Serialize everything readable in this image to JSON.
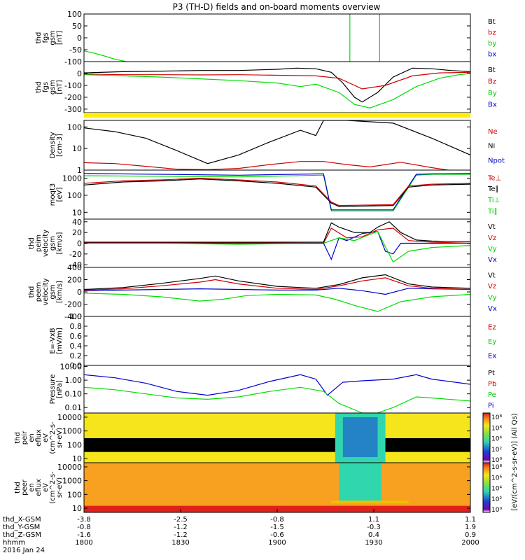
{
  "title": "P3 (TH-D) fields and on-board moments overview",
  "chart_data": [
    {
      "type": "line",
      "ylabel": [
        "thd",
        "fgs",
        "gsm",
        "[nT]"
      ],
      "ylim": [
        -100,
        100
      ],
      "ticks": [
        "100",
        "50",
        "0",
        "-50",
        "-100"
      ],
      "legend": [
        {
          "name": "Bt",
          "color": "#000000"
        },
        {
          "name": "bz",
          "color": "#cc0000"
        },
        {
          "name": "by",
          "color": "#00cc00"
        },
        {
          "name": "bx",
          "color": "#0000cc"
        }
      ],
      "series": [
        {
          "name": "by",
          "color": "#00dd00",
          "x": [
            0,
            0.02,
            0.05,
            0.08,
            0.11
          ],
          "y": [
            -55,
            -62,
            -75,
            -90,
            -100
          ]
        },
        {
          "name": "by",
          "color": "#00dd00",
          "x": [
            0.688,
            0.688
          ],
          "y": [
            -100,
            100
          ]
        },
        {
          "name": "by",
          "color": "#00dd00",
          "x": [
            0.765,
            0.765
          ],
          "y": [
            100,
            -100
          ]
        }
      ]
    },
    {
      "type": "line",
      "ylabel": [
        "thd",
        "fgs",
        "gsm",
        "[nT]"
      ],
      "ylim": [
        -330,
        100
      ],
      "ticks": [
        "0",
        "-100",
        "-200",
        "-300"
      ],
      "tickvals": [
        0,
        -100,
        -200,
        -300
      ],
      "legend": [
        {
          "name": "Bt",
          "color": "#000000"
        },
        {
          "name": "Bz",
          "color": "#cc0000"
        },
        {
          "name": "By",
          "color": "#00cc00"
        },
        {
          "name": "Bx",
          "color": "#0000cc"
        }
      ],
      "series": [
        {
          "name": "Bt",
          "color": "#000000",
          "x": [
            0,
            0.1,
            0.2,
            0.3,
            0.4,
            0.5,
            0.55,
            0.6,
            0.64,
            0.67,
            0.7,
            0.72,
            0.76,
            0.8,
            0.85,
            0.9,
            0.95,
            1.0
          ],
          "y": [
            5,
            15,
            20,
            25,
            25,
            35,
            45,
            40,
            10,
            -80,
            -200,
            -240,
            -160,
            -30,
            45,
            40,
            25,
            15
          ]
        },
        {
          "name": "Bz",
          "color": "#cc0000",
          "x": [
            0,
            0.1,
            0.2,
            0.3,
            0.4,
            0.5,
            0.6,
            0.66,
            0.72,
            0.78,
            0.85,
            0.92,
            1.0
          ],
          "y": [
            -5,
            -10,
            -10,
            -12,
            -10,
            -15,
            -20,
            -40,
            -130,
            -100,
            -20,
            5,
            10
          ]
        },
        {
          "name": "By",
          "color": "#00dd00",
          "x": [
            0,
            0.1,
            0.2,
            0.3,
            0.4,
            0.5,
            0.56,
            0.6,
            0.66,
            0.7,
            0.74,
            0.8,
            0.86,
            0.92,
            0.97,
            1.0
          ],
          "y": [
            -10,
            -20,
            -30,
            -45,
            -60,
            -80,
            -110,
            -90,
            -160,
            -260,
            -290,
            -220,
            -110,
            -40,
            -10,
            0
          ]
        }
      ]
    },
    {
      "type": "band",
      "color": "#ffee00"
    },
    {
      "type": "line",
      "ylabel": [
        "Density",
        "[cm-3]"
      ],
      "scale": "log",
      "ylim": [
        1,
        200
      ],
      "ticks": [
        "100",
        "10",
        "1"
      ],
      "tickvals": [
        100,
        10,
        1
      ],
      "legend": [
        {
          "name": "Ne",
          "color": "#cc0000"
        },
        {
          "name": "Ni",
          "color": "#000000"
        },
        {
          "name": "Npot",
          "color": "#0000cc"
        }
      ],
      "series": [
        {
          "name": "Ni",
          "color": "#000000",
          "x": [
            0,
            0.08,
            0.16,
            0.24,
            0.32,
            0.4,
            0.48,
            0.56,
            0.6,
            0.62,
            0.65,
            0.68,
            0.8,
            0.9,
            1.0
          ],
          "y": [
            90,
            60,
            30,
            8,
            2,
            5,
            20,
            70,
            40,
            200,
            200,
            200,
            150,
            30,
            5
          ]
        },
        {
          "name": "Ne",
          "color": "#cc0000",
          "x": [
            0,
            0.08,
            0.16,
            0.24,
            0.32,
            0.4,
            0.48,
            0.56,
            0.62,
            0.68,
            0.74,
            0.78,
            0.82,
            0.9,
            1.0
          ],
          "y": [
            2.2,
            2,
            1.5,
            1.1,
            1.05,
            1.2,
            1.8,
            2.5,
            2.5,
            1.8,
            1.4,
            1.8,
            2.3,
            1.3,
            0.7
          ]
        }
      ]
    },
    {
      "type": "line",
      "ylabel": [
        "moqt3",
        "[eV]"
      ],
      "scale": "log",
      "ylim": [
        4,
        3000
      ],
      "ticks": [
        "1000",
        "100",
        "10"
      ],
      "tickvals": [
        1000,
        100,
        10
      ],
      "legend": [
        {
          "name": "Te⊥",
          "color": "#cc0000"
        },
        {
          "name": "Te∥",
          "color": "#000000"
        },
        {
          "name": "Ti⊥",
          "color": "#00cc00"
        },
        {
          "name": "Ti∥",
          "color": "#00cc00"
        }
      ],
      "series": [
        {
          "name": "Ti⊥",
          "color": "#00dd00",
          "x": [
            0,
            0.2,
            0.4,
            0.61,
            0.62,
            0.64,
            0.8,
            0.82,
            0.86,
            0.9,
            1.0
          ],
          "y": [
            1400,
            1300,
            1200,
            1500,
            1500,
            12,
            12,
            60,
            1500,
            1700,
            1700
          ]
        },
        {
          "name": "Ti∥",
          "color": "#0000cc",
          "x": [
            0,
            0.2,
            0.4,
            0.61,
            0.62,
            0.64,
            0.8,
            0.82,
            0.86,
            0.9,
            1.0
          ],
          "y": [
            1900,
            1700,
            1500,
            1800,
            1800,
            14,
            14,
            70,
            1700,
            1800,
            1900
          ]
        },
        {
          "name": "Te∥",
          "color": "#000000",
          "x": [
            0,
            0.1,
            0.2,
            0.3,
            0.4,
            0.5,
            0.6,
            0.64,
            0.66,
            0.8,
            0.84,
            0.9,
            1.0
          ],
          "y": [
            400,
            600,
            700,
            900,
            700,
            500,
            300,
            35,
            22,
            25,
            300,
            400,
            450
          ]
        },
        {
          "name": "Te⊥",
          "color": "#cc0000",
          "x": [
            0,
            0.1,
            0.2,
            0.3,
            0.4,
            0.5,
            0.6,
            0.64,
            0.66,
            0.8,
            0.84,
            0.9,
            1.0
          ],
          "y": [
            500,
            700,
            800,
            1000,
            800,
            600,
            350,
            40,
            25,
            28,
            350,
            450,
            500
          ]
        }
      ]
    },
    {
      "type": "line",
      "ylabel": [
        "thd",
        "peim",
        "velocity",
        "gsm",
        "[km/s]"
      ],
      "ylim": [
        -45,
        45
      ],
      "ticks": [
        "40",
        "20",
        "0",
        "-20",
        "-40"
      ],
      "tickvals": [
        40,
        20,
        0,
        -20,
        -40
      ],
      "legend": [
        {
          "name": "Vt",
          "color": "#000000"
        },
        {
          "name": "Vz",
          "color": "#cc0000"
        },
        {
          "name": "Vy",
          "color": "#00cc00"
        },
        {
          "name": "Vx",
          "color": "#0000cc"
        }
      ],
      "series": [
        {
          "name": "Vx",
          "color": "#0000cc",
          "x": [
            0,
            0.2,
            0.4,
            0.6,
            0.62,
            0.64,
            0.66,
            0.68,
            0.72,
            0.76,
            0.78,
            0.8,
            0.82,
            1.0
          ],
          "y": [
            0,
            0,
            0,
            0,
            0,
            -30,
            10,
            5,
            18,
            22,
            -15,
            -20,
            0,
            0
          ]
        },
        {
          "name": "Vy",
          "color": "#00dd00",
          "x": [
            0,
            0.2,
            0.4,
            0.6,
            0.62,
            0.66,
            0.7,
            0.76,
            0.8,
            0.84,
            0.9,
            1.0
          ],
          "y": [
            0,
            0,
            -2,
            0,
            0,
            10,
            5,
            22,
            -35,
            -15,
            -8,
            -4
          ]
        },
        {
          "name": "Vz",
          "color": "#cc0000",
          "x": [
            0,
            0.2,
            0.4,
            0.6,
            0.62,
            0.64,
            0.68,
            0.72,
            0.76,
            0.8,
            0.84,
            0.9,
            1.0
          ],
          "y": [
            1,
            1,
            1,
            0,
            0,
            28,
            10,
            12,
            25,
            28,
            5,
            2,
            0
          ]
        },
        {
          "name": "Vt",
          "color": "#000000",
          "x": [
            0,
            0.2,
            0.4,
            0.6,
            0.62,
            0.64,
            0.66,
            0.7,
            0.74,
            0.76,
            0.79,
            0.82,
            0.86,
            0.9,
            1.0
          ],
          "y": [
            2,
            2,
            2,
            2,
            2,
            38,
            30,
            20,
            20,
            30,
            40,
            20,
            6,
            4,
            3
          ]
        }
      ]
    },
    {
      "type": "line",
      "ylabel": [
        "thd",
        "peem",
        "velocity",
        "gsm",
        "[km/s]"
      ],
      "ylim": [
        -400,
        400
      ],
      "ticks": [
        "400",
        "200",
        "0",
        "-200",
        "-400"
      ],
      "tickvals": [
        400,
        200,
        0,
        -200,
        -400
      ],
      "legend": [
        {
          "name": "Vt",
          "color": "#000000"
        },
        {
          "name": "Vz",
          "color": "#cc0000"
        },
        {
          "name": "Vy",
          "color": "#00cc00"
        },
        {
          "name": "Vx",
          "color": "#0000cc"
        }
      ],
      "series": [
        {
          "name": "Vy",
          "color": "#00dd00",
          "x": [
            0,
            0.1,
            0.2,
            0.3,
            0.36,
            0.42,
            0.5,
            0.6,
            0.65,
            0.7,
            0.76,
            0.82,
            0.9,
            1.0
          ],
          "y": [
            -20,
            -40,
            -80,
            -150,
            -120,
            -60,
            -40,
            -50,
            -120,
            -220,
            -320,
            -160,
            -80,
            -40
          ]
        },
        {
          "name": "Vx",
          "color": "#0000cc",
          "x": [
            0,
            0.1,
            0.2,
            0.3,
            0.4,
            0.5,
            0.6,
            0.66,
            0.72,
            0.78,
            0.84,
            0.9,
            1.0
          ],
          "y": [
            20,
            30,
            40,
            50,
            40,
            30,
            30,
            60,
            20,
            -40,
            60,
            50,
            40
          ]
        },
        {
          "name": "Vz",
          "color": "#cc0000",
          "x": [
            0,
            0.1,
            0.2,
            0.3,
            0.34,
            0.4,
            0.5,
            0.6,
            0.66,
            0.72,
            0.78,
            0.84,
            0.9,
            1.0
          ],
          "y": [
            30,
            50,
            100,
            160,
            200,
            130,
            60,
            40,
            100,
            180,
            230,
            100,
            60,
            40
          ]
        },
        {
          "name": "Vt",
          "color": "#000000",
          "x": [
            0,
            0.1,
            0.2,
            0.3,
            0.34,
            0.4,
            0.5,
            0.6,
            0.66,
            0.72,
            0.78,
            0.84,
            0.9,
            1.0
          ],
          "y": [
            40,
            70,
            140,
            220,
            260,
            180,
            90,
            60,
            120,
            230,
            280,
            130,
            80,
            60
          ]
        }
      ]
    },
    {
      "type": "line",
      "ylabel": [
        "E=-VxB",
        "[mV/m]"
      ],
      "ylim": [
        0,
        1.0
      ],
      "ticks": [
        "1.0",
        "0.8",
        "0.6",
        "0.4",
        "0.2",
        "0.0"
      ],
      "tickvals": [
        1.0,
        0.8,
        0.6,
        0.4,
        0.2,
        0.0
      ],
      "legend": [
        {
          "name": "Ez",
          "color": "#cc0000"
        },
        {
          "name": "Ey",
          "color": "#00cc00"
        },
        {
          "name": "Ex",
          "color": "#0000cc"
        }
      ],
      "series": []
    },
    {
      "type": "line",
      "ylabel": [
        "Pressure",
        "[nPa]"
      ],
      "scale": "log",
      "ylim": [
        0.004,
        12
      ],
      "ticks": [
        "10.00",
        "1.00",
        "0.10",
        "0.01"
      ],
      "tickvals": [
        10,
        1,
        0.1,
        0.01
      ],
      "legend": [
        {
          "name": "Pt",
          "color": "#000000"
        },
        {
          "name": "Pb",
          "color": "#cc0000"
        },
        {
          "name": "Pe",
          "color": "#00cc00"
        },
        {
          "name": "Pi",
          "color": "#0000cc"
        }
      ],
      "series": [
        {
          "name": "Pi",
          "color": "#0000cc",
          "x": [
            0,
            0.08,
            0.16,
            0.24,
            0.32,
            0.4,
            0.48,
            0.56,
            0.6,
            0.63,
            0.67,
            0.72,
            0.8,
            0.86,
            0.9,
            1.0
          ],
          "y": [
            2.5,
            1.5,
            0.6,
            0.15,
            0.08,
            0.18,
            0.8,
            2.5,
            1.2,
            0.08,
            0.7,
            0.9,
            1.2,
            2.5,
            1.2,
            0.5
          ]
        },
        {
          "name": "Pe",
          "color": "#00dd00",
          "x": [
            0,
            0.08,
            0.16,
            0.24,
            0.32,
            0.4,
            0.48,
            0.56,
            0.62,
            0.66,
            0.72,
            0.76,
            0.8,
            0.86,
            0.9,
            1.0
          ],
          "y": [
            0.3,
            0.2,
            0.1,
            0.05,
            0.04,
            0.06,
            0.15,
            0.3,
            0.15,
            0.02,
            0.004,
            0.004,
            0.01,
            0.06,
            0.05,
            0.03
          ]
        }
      ]
    },
    {
      "type": "heatmap",
      "ylabel": [
        "thd",
        "peir",
        "en",
        "eflux",
        "eV",
        "(cm^2-s-",
        "sr-eV)"
      ],
      "scale": "log",
      "ylim": [
        5,
        20000
      ],
      "ticks": [
        "10000",
        "1000",
        "100",
        "10"
      ],
      "tickvals": [
        10000,
        1000,
        100,
        10
      ],
      "colors": {
        "background": "#f6e51a",
        "low_band": "#000000",
        "core": "#2fd6ae",
        "core_inner": "#1a3fd8"
      }
    },
    {
      "type": "heatmap",
      "ylabel": [
        "thd",
        "peer",
        "en",
        "eflux",
        "eV",
        "(cm^2-s-",
        "sr-eV)"
      ],
      "scale": "log",
      "ylim": [
        5,
        20000
      ],
      "ticks": [
        "10000",
        "1000",
        "100",
        "10"
      ],
      "tickvals": [
        10000,
        1000,
        100,
        10
      ],
      "colors": {
        "background": "#f8a020",
        "low_band": "#e0201a",
        "core": "#2fd6ae",
        "hot_line": "#f0c000"
      }
    }
  ],
  "colorbar": {
    "label": "[eV/(cm^2-s-sr-eV)] (All Qs)",
    "ticks_top": [
      "10⁸",
      "10⁶",
      "10⁴",
      "10²",
      "10⁰"
    ],
    "ticks_bottom": [
      "10⁸",
      "10⁶",
      "10⁴",
      "10²",
      "10⁰"
    ]
  },
  "xaxis": {
    "rows": [
      {
        "label": "thd_X-GSM",
        "values": [
          "-3.8",
          "-2.5",
          "-0.8",
          "1.1",
          "1.1"
        ]
      },
      {
        "label": "thd_Y-GSM",
        "values": [
          "-0.8",
          "-1.2",
          "-1.5",
          "-0.3",
          "1.9"
        ]
      },
      {
        "label": "thd_Z-GSM",
        "values": [
          "-1.6",
          "-1.2",
          "-0.6",
          "0.4",
          "0.9"
        ]
      },
      {
        "label": "hhmm",
        "values": [
          "1800",
          "1830",
          "1900",
          "1930",
          "2000"
        ]
      }
    ],
    "date": "2016 Jan 24"
  }
}
